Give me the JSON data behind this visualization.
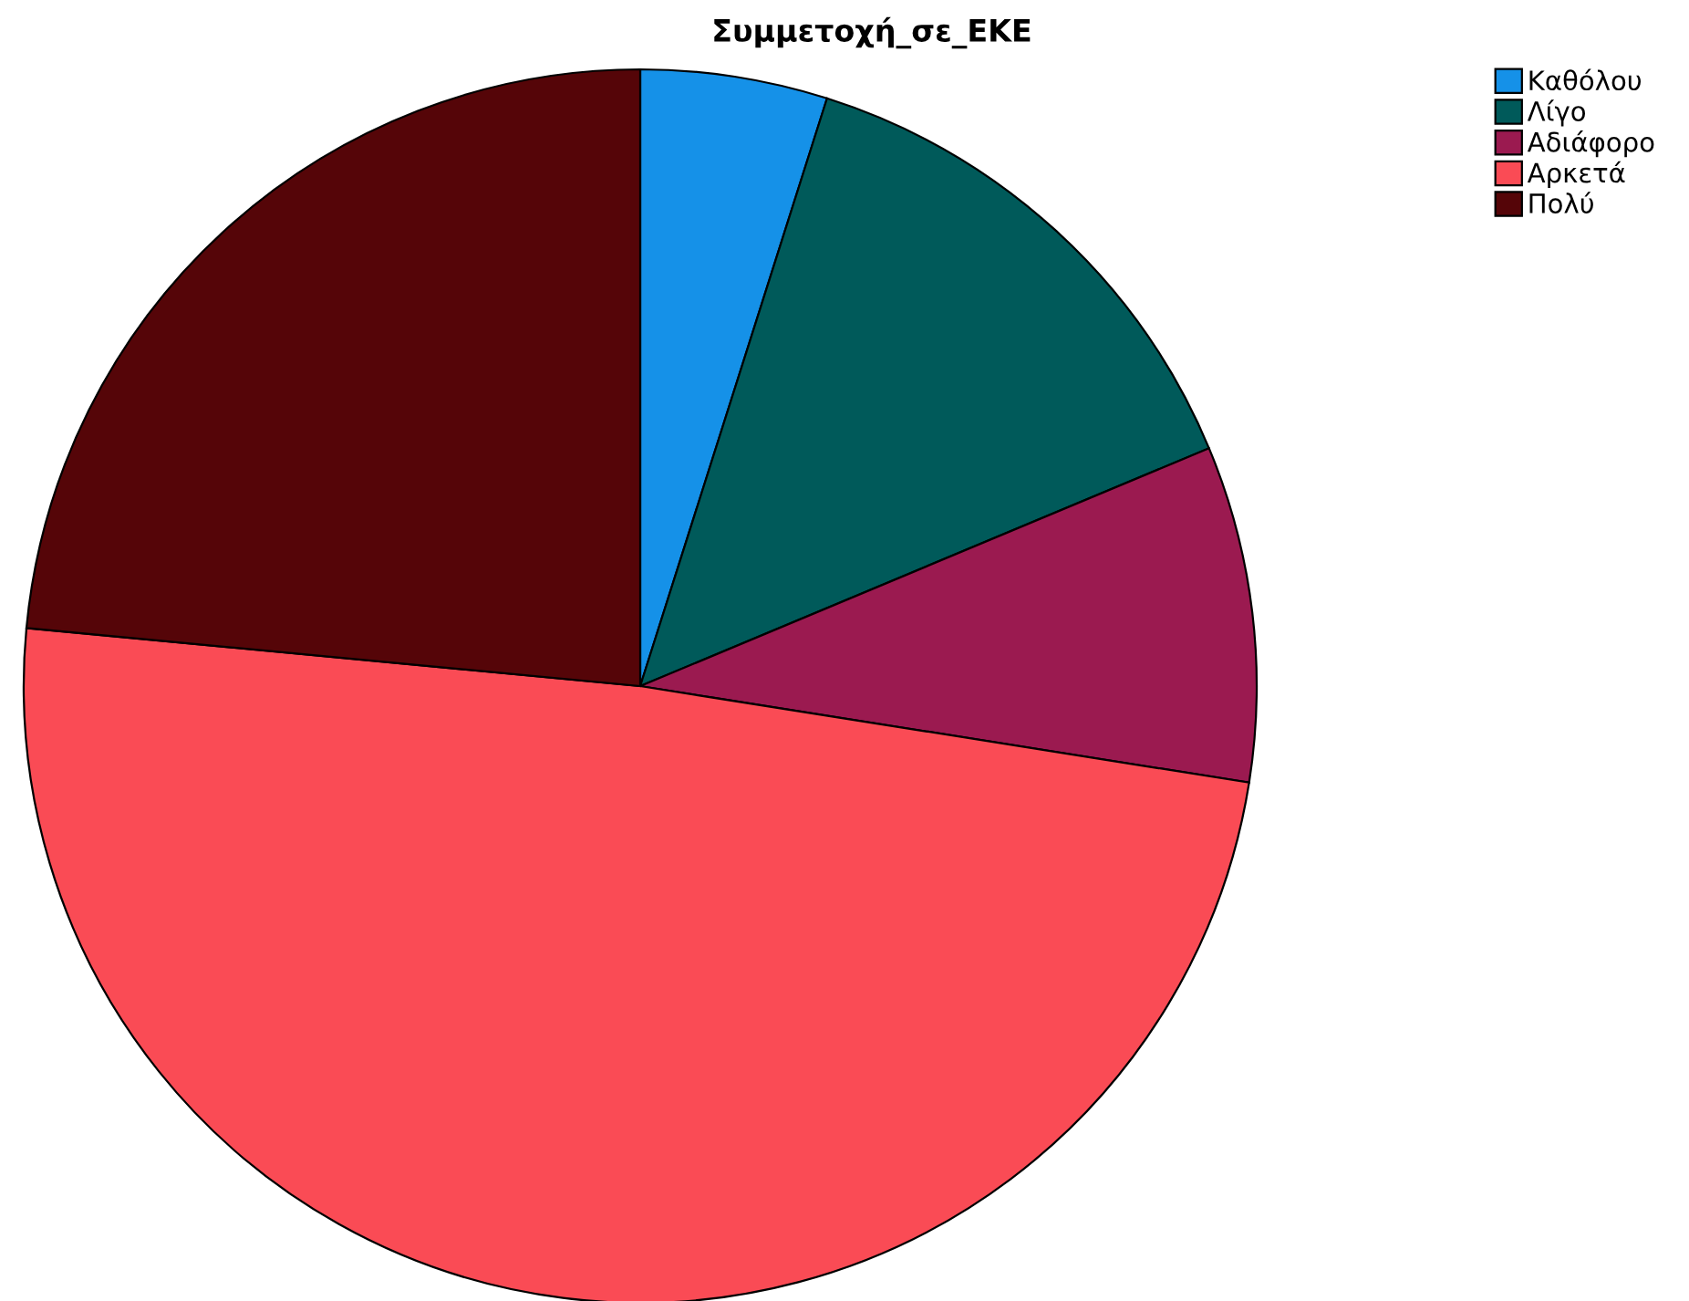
{
  "chart_data": {
    "type": "pie",
    "title": "Συμμετοχή_σε_ΕΚΕ",
    "categories": [
      "Καθόλου",
      "Λίγο",
      "Αδιάφορο",
      "Αρκετά",
      "Πολύ"
    ],
    "values": [
      4.9,
      13.8,
      8.8,
      49.0,
      23.5
    ],
    "colors": [
      "#1591e8",
      "#005a5a",
      "#9b1a50",
      "#fa4b55",
      "#550508"
    ],
    "legend": "top right"
  }
}
